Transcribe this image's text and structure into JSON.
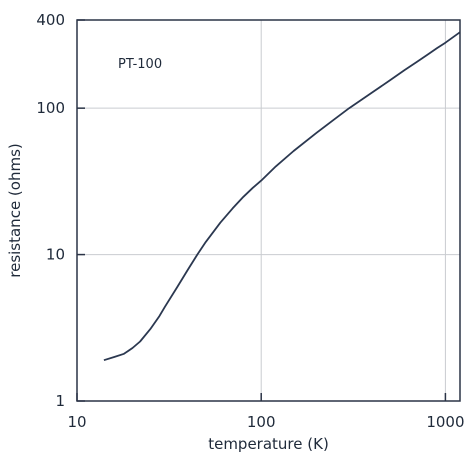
{
  "chart_data": {
    "type": "line",
    "xlabel": "temperature (K)",
    "ylabel": "resistance (ohms)",
    "x_scale": "log",
    "y_scale": "log",
    "xlim": [
      10,
      1200
    ],
    "ylim": [
      1,
      400
    ],
    "x_ticks": [
      {
        "value": 10,
        "label": "10"
      },
      {
        "value": 100,
        "label": "100"
      },
      {
        "value": 1000,
        "label": "1000"
      }
    ],
    "y_ticks": [
      {
        "value": 1,
        "label": "1"
      },
      {
        "value": 10,
        "label": "10"
      },
      {
        "value": 100,
        "label": "100"
      },
      {
        "value": 400,
        "label": "400"
      }
    ],
    "grid": true,
    "annotation": "PT-100",
    "line_color": "#2b3850",
    "grid_color": "#c9ccd0",
    "series": [
      {
        "x": [
          14,
          16,
          18,
          20,
          22,
          25,
          28,
          30,
          35,
          40,
          45,
          50,
          60,
          70,
          80,
          90,
          100,
          120,
          150,
          200,
          250,
          300,
          400,
          500,
          600,
          700,
          800,
          900,
          1000,
          1200
        ],
        "y": [
          1.9,
          2.0,
          2.1,
          2.3,
          2.55,
          3.1,
          3.8,
          4.4,
          6.0,
          7.9,
          10.0,
          12.2,
          16.5,
          20.7,
          24.8,
          28.6,
          32.0,
          40.0,
          51.0,
          68.0,
          84.0,
          100.0,
          128.0,
          155.0,
          182.0,
          207.0,
          232.0,
          257.0,
          280.0,
          330.0
        ]
      }
    ]
  }
}
